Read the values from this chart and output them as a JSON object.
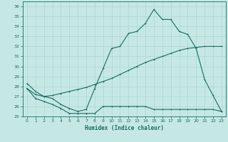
{
  "xlabel": "Humidex (Indice chaleur)",
  "bg_color": "#c5e8e5",
  "grid_color": "#b0d8d5",
  "line_color": "#1a6b60",
  "xlim": [
    -0.5,
    23.5
  ],
  "ylim": [
    25,
    36.5
  ],
  "yticks": [
    25,
    26,
    27,
    28,
    29,
    30,
    31,
    32,
    33,
    34,
    35,
    36
  ],
  "xticks": [
    0,
    1,
    2,
    3,
    4,
    5,
    6,
    7,
    8,
    9,
    10,
    11,
    12,
    13,
    14,
    15,
    16,
    17,
    18,
    19,
    20,
    21,
    22,
    23
  ],
  "line1_x": [
    0,
    1,
    2,
    3,
    4,
    5,
    6,
    7,
    8,
    9,
    10,
    11,
    12,
    13,
    14,
    15,
    16,
    17,
    18,
    19,
    20,
    21,
    22,
    23
  ],
  "line1_y": [
    27.8,
    26.8,
    26.5,
    26.2,
    25.8,
    25.3,
    25.3,
    25.3,
    25.3,
    26.0,
    26.0,
    26.0,
    26.0,
    26.0,
    26.0,
    25.7,
    25.7,
    25.7,
    25.7,
    25.7,
    25.7,
    25.7,
    25.7,
    25.5
  ],
  "line2_x": [
    0,
    1,
    2,
    3,
    4,
    5,
    6,
    7,
    8,
    9,
    10,
    11,
    12,
    13,
    14,
    15,
    16,
    17,
    18,
    19,
    20,
    21,
    22,
    23
  ],
  "line2_y": [
    27.8,
    27.2,
    27.0,
    27.1,
    27.3,
    27.5,
    27.7,
    27.9,
    28.2,
    28.5,
    28.8,
    29.2,
    29.6,
    30.0,
    30.4,
    30.7,
    31.0,
    31.3,
    31.6,
    31.8,
    31.9,
    32.0,
    32.0,
    32.0
  ],
  "line3_x": [
    0,
    1,
    2,
    3,
    4,
    5,
    6,
    7,
    8,
    9,
    10,
    11,
    12,
    13,
    14,
    15,
    16,
    17,
    18,
    19,
    20,
    21,
    22,
    23
  ],
  "line3_y": [
    28.3,
    27.5,
    27.0,
    26.8,
    26.2,
    25.8,
    25.5,
    25.7,
    27.8,
    29.8,
    31.8,
    32.0,
    33.3,
    33.5,
    34.3,
    35.7,
    34.7,
    34.7,
    33.5,
    33.2,
    31.8,
    28.7,
    27.1,
    25.5
  ]
}
